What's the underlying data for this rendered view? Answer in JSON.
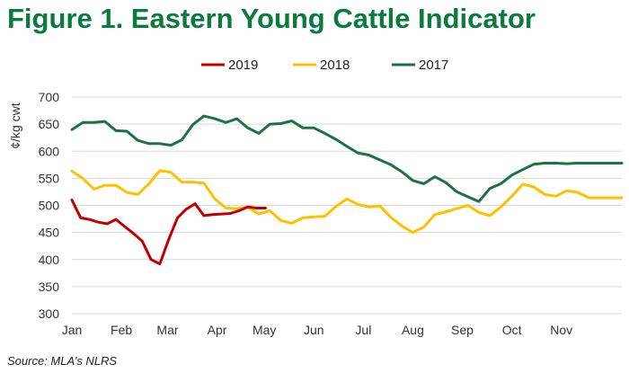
{
  "page": {
    "title": "Figure 1. Eastern Young Cattle Indicator",
    "source": "Source: MLA’s NLRS"
  },
  "colors": {
    "title": "#0a7a3e",
    "series_2019": "#c00000",
    "series_2018": "#ffc000",
    "series_2017": "#1e7145",
    "grid": "#d9d9d9"
  },
  "chart_data": {
    "type": "line",
    "title": "Figure 1. Eastern Young Cattle Indicator",
    "ylabel": "¢/kg cwt",
    "xlabel": "",
    "ylim": [
      300,
      700
    ],
    "yticks": [
      300,
      350,
      400,
      450,
      500,
      550,
      600,
      650,
      700
    ],
    "xlim": [
      0,
      50
    ],
    "x_tick_labels": [
      "Jan",
      "Feb",
      "Mar",
      "Apr",
      "May",
      "Jun",
      "Jul",
      "Aug",
      "Sep",
      "Oct",
      "Nov"
    ],
    "x_tick_positions": [
      0,
      4.5,
      8.7,
      13.2,
      17.5,
      22,
      26.5,
      31,
      35.5,
      40,
      44.5
    ],
    "grid": "horizontal",
    "legend": "top-center",
    "series": [
      {
        "name": "2019",
        "color": "#c00000",
        "x": [
          0,
          0.8,
          1.6,
          2.4,
          3.2,
          4,
          4.8,
          5.6,
          6.4,
          7.2,
          8,
          8.8,
          9.6,
          10.4,
          11.2,
          12,
          12.8,
          13.6,
          14.4,
          15.2,
          16,
          16.8,
          17.6
        ],
        "values": [
          510,
          477,
          474,
          469,
          466,
          474,
          461,
          448,
          434,
          400,
          392,
          437,
          477,
          493,
          503,
          481,
          483,
          484,
          485,
          490,
          497,
          495,
          495
        ]
      },
      {
        "name": "2018",
        "color": "#ffc000",
        "x": [
          0,
          1,
          2,
          3,
          4,
          5,
          6,
          7,
          8,
          9,
          10,
          11,
          12,
          13,
          14,
          15,
          16,
          17,
          18,
          19,
          20,
          21,
          22,
          23,
          24,
          25,
          26,
          27,
          28,
          29,
          30,
          31,
          32,
          33,
          34,
          35,
          36,
          37,
          38,
          39,
          40,
          41,
          42,
          43,
          44,
          45,
          46,
          47,
          48,
          49,
          50
        ],
        "values": [
          563,
          550,
          530,
          537,
          537,
          524,
          520,
          540,
          564,
          561,
          543,
          543,
          541,
          512,
          495,
          494,
          497,
          484,
          490,
          472,
          467,
          477,
          479,
          480,
          498,
          512,
          502,
          497,
          499,
          478,
          462,
          450,
          460,
          483,
          488,
          494,
          500,
          487,
          481,
          497,
          517,
          539,
          534,
          520,
          517,
          527,
          524,
          514,
          514,
          514,
          514
        ]
      },
      {
        "name": "2017",
        "color": "#1e7145",
        "x": [
          0,
          1,
          2,
          3,
          4,
          5,
          6,
          7,
          8,
          9,
          10,
          11,
          12,
          13,
          14,
          15,
          16,
          17,
          18,
          19,
          20,
          21,
          22,
          23,
          24,
          25,
          26,
          27,
          28,
          29,
          30,
          31,
          32,
          33,
          34,
          35,
          36,
          37,
          38,
          39,
          40,
          41,
          42,
          43,
          44,
          45,
          46,
          47,
          48,
          49,
          50
        ],
        "values": [
          640,
          653,
          653,
          655,
          638,
          637,
          620,
          614,
          614,
          611,
          621,
          649,
          665,
          660,
          653,
          660,
          643,
          633,
          650,
          651,
          656,
          643,
          643,
          633,
          622,
          609,
          597,
          593,
          584,
          575,
          562,
          546,
          540,
          553,
          542,
          525,
          516,
          507,
          531,
          540,
          556,
          566,
          576,
          578,
          578,
          577,
          578,
          578,
          578,
          578,
          578
        ]
      }
    ]
  }
}
